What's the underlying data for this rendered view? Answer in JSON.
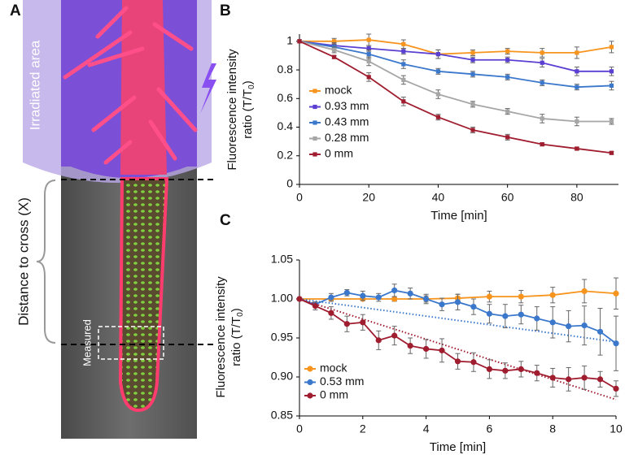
{
  "panel_a": {
    "label": "A",
    "irradiated": "Irradiated area",
    "distance": "Distance to cross (X)",
    "measured": "Measured"
  },
  "chart_data": [
    {
      "type": "line",
      "panel_label": "B",
      "xlabel": "Time [min]",
      "ylabel": {
        "line1": "Fluorescence intensity",
        "line2": "ratio (T/T",
        "sub": "0",
        "end": ")"
      },
      "xlim": [
        0,
        92
      ],
      "xticks": [
        0,
        20,
        40,
        60,
        80
      ],
      "ylim": [
        0,
        1.05
      ],
      "yticks": [
        0,
        0.2,
        0.4,
        0.6,
        0.8,
        1
      ],
      "marker": "square",
      "series": [
        {
          "name": "mock",
          "color": "#f7941d",
          "x": [
            0,
            10,
            20,
            30,
            40,
            50,
            60,
            70,
            80,
            90
          ],
          "values": [
            1,
            1,
            1.01,
            0.98,
            0.91,
            0.92,
            0.93,
            0.92,
            0.92,
            0.96
          ],
          "errors": [
            0,
            0.02,
            0.04,
            0.03,
            0.03,
            0.02,
            0.02,
            0.03,
            0.04,
            0.04
          ]
        },
        {
          "name": "0.93 mm",
          "color": "#5b3fd3",
          "x": [
            0,
            10,
            20,
            30,
            40,
            50,
            60,
            70,
            80,
            90
          ],
          "values": [
            1,
            0.97,
            0.95,
            0.93,
            0.91,
            0.87,
            0.87,
            0.85,
            0.79,
            0.79
          ],
          "errors": [
            0,
            0.02,
            0.02,
            0.02,
            0.03,
            0.02,
            0.02,
            0.03,
            0.03,
            0.03
          ]
        },
        {
          "name": "0.43 mm",
          "color": "#3b78cc",
          "x": [
            0,
            10,
            20,
            30,
            40,
            50,
            60,
            70,
            80,
            90
          ],
          "values": [
            1,
            0.96,
            0.91,
            0.84,
            0.79,
            0.77,
            0.75,
            0.71,
            0.68,
            0.69
          ],
          "errors": [
            0,
            0.02,
            0.03,
            0.03,
            0.02,
            0.02,
            0.02,
            0.02,
            0.02,
            0.03
          ]
        },
        {
          "name": "0.28 mm",
          "color": "#a6a6a6",
          "x": [
            0,
            10,
            20,
            30,
            40,
            50,
            60,
            70,
            80,
            90
          ],
          "values": [
            1,
            0.94,
            0.86,
            0.73,
            0.63,
            0.56,
            0.51,
            0.46,
            0.44,
            0.44
          ],
          "errors": [
            0,
            0.02,
            0.03,
            0.03,
            0.03,
            0.02,
            0.02,
            0.03,
            0.03,
            0.02
          ]
        },
        {
          "name": "0 mm",
          "color": "#a01c2f",
          "x": [
            0,
            10,
            20,
            30,
            40,
            50,
            60,
            70,
            80,
            90
          ],
          "values": [
            1,
            0.89,
            0.75,
            0.58,
            0.47,
            0.38,
            0.33,
            0.28,
            0.25,
            0.22
          ],
          "errors": [
            0,
            0.01,
            0.03,
            0.03,
            0.02,
            0.02,
            0.02,
            0.01,
            0.01,
            0.01
          ]
        }
      ]
    },
    {
      "type": "line",
      "panel_label": "C",
      "xlabel": "Time [min]",
      "ylabel": {
        "line1": "Fluorescence intensity",
        "line2": "ratio (T/T",
        "sub": "0",
        "end": ")"
      },
      "xlim": [
        0,
        10
      ],
      "xticks": [
        0,
        2,
        4,
        6,
        8,
        10
      ],
      "ylim": [
        0.85,
        1.05
      ],
      "yticks": [
        0.85,
        {
          "value": 0.9,
          "label": "0.90"
        },
        0.95,
        {
          "value": 1,
          "label": "1.00"
        },
        1.05
      ],
      "marker": "circle",
      "series": [
        {
          "name": "mock",
          "color": "#f7941d",
          "x": [
            0,
            1,
            2,
            3,
            4,
            5,
            6,
            7,
            8,
            9,
            10
          ],
          "values": [
            1,
            1,
            1,
            1,
            1,
            1.001,
            1.003,
            1.003,
            1.005,
            1.01,
            1.007
          ],
          "errors": [
            0,
            0.002,
            0.002,
            0.003,
            0.004,
            0.005,
            0.007,
            0.008,
            0.01,
            0.015,
            0.02
          ]
        },
        {
          "name": "0.53 mm",
          "color": "#3b78cc",
          "x": [
            0,
            0.5,
            1,
            1.5,
            2,
            2.5,
            3,
            3.5,
            4,
            4.5,
            5,
            5.5,
            6,
            6.5,
            7,
            7.5,
            8,
            8.5,
            9,
            9.5,
            10
          ],
          "values": [
            1,
            0.993,
            1.002,
            1.008,
            1.004,
            1.002,
            1.011,
            1.007,
            1,
            0.993,
            0.996,
            0.99,
            0.981,
            0.978,
            0.98,
            0.975,
            0.97,
            0.965,
            0.966,
            0.958,
            0.943
          ],
          "errors": [
            0,
            0.003,
            0.005,
            0.004,
            0.006,
            0.005,
            0.008,
            0.007,
            0.006,
            0.008,
            0.01,
            0.01,
            0.012,
            0.015,
            0.012,
            0.015,
            0.02,
            0.02,
            0.025,
            0.03,
            0.035
          ],
          "trend": [
            1,
            0.945
          ]
        },
        {
          "name": "0 mm",
          "color": "#a01c2f",
          "x": [
            0,
            0.5,
            1,
            1.5,
            2,
            2.5,
            3,
            3.5,
            4,
            4.5,
            5,
            5.5,
            6,
            6.5,
            7,
            7.5,
            8,
            8.5,
            9,
            9.5,
            10
          ],
          "values": [
            1,
            0.991,
            0.982,
            0.968,
            0.97,
            0.947,
            0.953,
            0.94,
            0.936,
            0.934,
            0.92,
            0.919,
            0.91,
            0.908,
            0.91,
            0.905,
            0.899,
            0.897,
            0.899,
            0.897,
            0.885
          ],
          "errors": [
            0,
            0.005,
            0.008,
            0.01,
            0.01,
            0.012,
            0.012,
            0.01,
            0.012,
            0.015,
            0.01,
            0.012,
            0.012,
            0.01,
            0.01,
            0.01,
            0.012,
            0.015,
            0.015,
            0.01,
            0.01
          ],
          "trend": [
            1,
            0.871
          ]
        }
      ]
    }
  ]
}
